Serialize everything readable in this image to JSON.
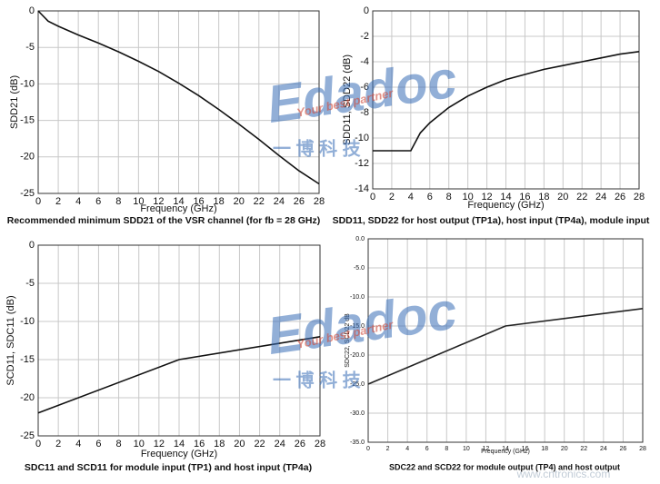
{
  "chart_data": [
    {
      "type": "line",
      "title": "Recommended minimum SDD21 of the VSR channel (for fb = 28 GHz)",
      "x_label": "Frequency (GHz)",
      "y_label": "SDD21 (dB)",
      "xlim": [
        0,
        28
      ],
      "xticks": [
        0,
        2,
        4,
        6,
        8,
        10,
        12,
        14,
        16,
        18,
        20,
        22,
        24,
        26,
        28
      ],
      "ylim": [
        -25,
        0
      ],
      "yticks": [
        0,
        -5,
        -10,
        -15,
        -20,
        -25
      ],
      "grid": true,
      "x": [
        0,
        1,
        2,
        4,
        6,
        8,
        10,
        12,
        14,
        16,
        18,
        20,
        22,
        24,
        26,
        28
      ],
      "series": [
        {
          "color": "#111111",
          "values": [
            0,
            -1.4,
            -2.1,
            -3.3,
            -4.4,
            -5.6,
            -6.9,
            -8.3,
            -9.9,
            -11.6,
            -13.5,
            -15.5,
            -17.6,
            -19.8,
            -21.9,
            -23.7
          ]
        }
      ]
    },
    {
      "type": "line",
      "title": "SDD11, SDD22 for host output (TP1a), host input (TP4a), module input",
      "x_label": "Frequency (GHz)",
      "y_label": "SDD11, SDD22 (dB)",
      "xlim": [
        0,
        28
      ],
      "xticks": [
        0,
        2,
        4,
        6,
        8,
        10,
        12,
        14,
        16,
        18,
        20,
        22,
        24,
        26,
        28
      ],
      "ylim": [
        -14,
        0
      ],
      "yticks": [
        0,
        -2,
        -4,
        -6,
        -8,
        -10,
        -12,
        -14
      ],
      "grid": true,
      "x": [
        0,
        4,
        5,
        6,
        8,
        10,
        12,
        14,
        16,
        18,
        20,
        22,
        24,
        26,
        28
      ],
      "series": [
        {
          "color": "#111111",
          "values": [
            -11,
            -11,
            -9.6,
            -8.8,
            -7.6,
            -6.7,
            -6.0,
            -5.4,
            -5.0,
            -4.6,
            -4.3,
            -4.0,
            -3.7,
            -3.4,
            -3.2
          ]
        }
      ]
    },
    {
      "type": "line",
      "title": "SDC11 and SCD11 for module input (TP1) and host input (TP4a)",
      "x_label": "Frequency (GHz)",
      "y_label": "SCD11, SDC11 (dB)",
      "xlim": [
        0,
        28
      ],
      "xticks": [
        0,
        2,
        4,
        6,
        8,
        10,
        12,
        14,
        16,
        18,
        20,
        22,
        24,
        26,
        28
      ],
      "ylim": [
        -25,
        0
      ],
      "yticks": [
        0,
        -5,
        -10,
        -15,
        -20,
        -25
      ],
      "grid": true,
      "x": [
        0,
        14,
        28
      ],
      "series": [
        {
          "color": "#111111",
          "values": [
            -22,
            -15,
            -12
          ]
        }
      ]
    },
    {
      "type": "line",
      "title": "SDC22 and SCD22 for module output (TP4) and host output",
      "x_label": "Frequency (GHz)",
      "y_label": "SDC22, SCD22 dB",
      "xlim": [
        0,
        28
      ],
      "xticks": [
        0,
        2,
        4,
        6,
        8,
        10,
        12,
        14,
        16,
        18,
        20,
        22,
        24,
        26,
        28
      ],
      "ylim": [
        -35,
        0
      ],
      "yticks": [
        {
          "value": 0,
          "label": "0.0"
        },
        {
          "value": -5,
          "label": "-5.0"
        },
        {
          "value": -10,
          "label": "-10.0"
        },
        {
          "value": -15,
          "label": "-15.0"
        },
        {
          "value": -20,
          "label": "-20.0"
        },
        {
          "value": -25,
          "label": "-25.0"
        },
        {
          "value": -30,
          "label": "-30.0"
        },
        {
          "value": -35,
          "label": "-35.0"
        }
      ],
      "grid": true,
      "x": [
        0,
        14,
        28
      ],
      "series": [
        {
          "color": "#222222",
          "values": [
            -25,
            -15,
            -12
          ]
        }
      ]
    }
  ],
  "watermarks": [
    "Edadoc",
    "Your best partner",
    "一  博  科  技",
    "www.cntronics.com"
  ]
}
